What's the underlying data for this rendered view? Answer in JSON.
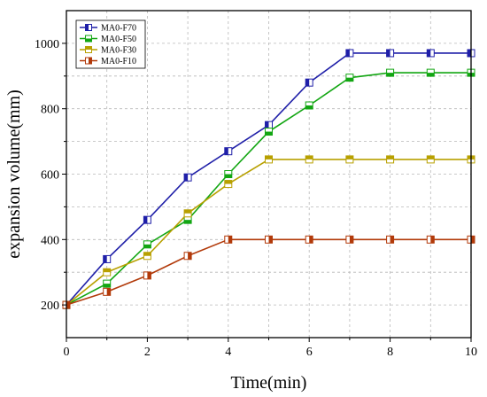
{
  "chart_data": {
    "type": "line",
    "title": "",
    "xlabel": "Time(min)",
    "ylabel": "expansion volume(mm)",
    "xlim": [
      0,
      10
    ],
    "ylim": [
      100,
      1100
    ],
    "x_ticks": [
      0,
      2,
      4,
      6,
      8,
      10
    ],
    "y_ticks": [
      200,
      400,
      600,
      800,
      1000
    ],
    "grid": true,
    "legend_position": "top-left",
    "x": [
      0,
      1,
      2,
      3,
      4,
      5,
      6,
      7,
      8,
      9,
      10
    ],
    "series": [
      {
        "name": "MA0-F70",
        "color": "#1f1fa8",
        "marker": "square-half-left",
        "values": [
          200,
          340,
          460,
          590,
          670,
          750,
          880,
          970,
          970,
          970,
          970
        ]
      },
      {
        "name": "MA0-F50",
        "color": "#12a612",
        "marker": "square-half-bottom",
        "values": [
          200,
          265,
          385,
          460,
          600,
          730,
          810,
          895,
          910,
          910,
          910
        ]
      },
      {
        "name": "MA0-F30",
        "color": "#b8a000",
        "marker": "square-half-top",
        "values": [
          200,
          300,
          350,
          480,
          570,
          645,
          645,
          645,
          645,
          645,
          645
        ]
      },
      {
        "name": "MA0-F10",
        "color": "#b23a0a",
        "marker": "square-half-right",
        "values": [
          200,
          240,
          290,
          350,
          400,
          400,
          400,
          400,
          400,
          400,
          400
        ]
      }
    ]
  }
}
